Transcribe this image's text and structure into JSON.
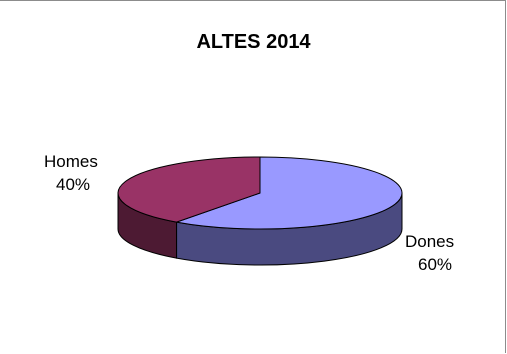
{
  "chart_data": {
    "type": "pie",
    "title": "ALTES 2014",
    "slices": [
      {
        "label": "Dones",
        "value": 60,
        "value_label": "60%",
        "color": "#9999ff",
        "side_color": "#4a4a80"
      },
      {
        "label": "Homes",
        "value": 40,
        "value_label": "40%",
        "color": "#993366",
        "side_color": "#4d1a33"
      }
    ],
    "legend": "none",
    "style": "3d"
  }
}
